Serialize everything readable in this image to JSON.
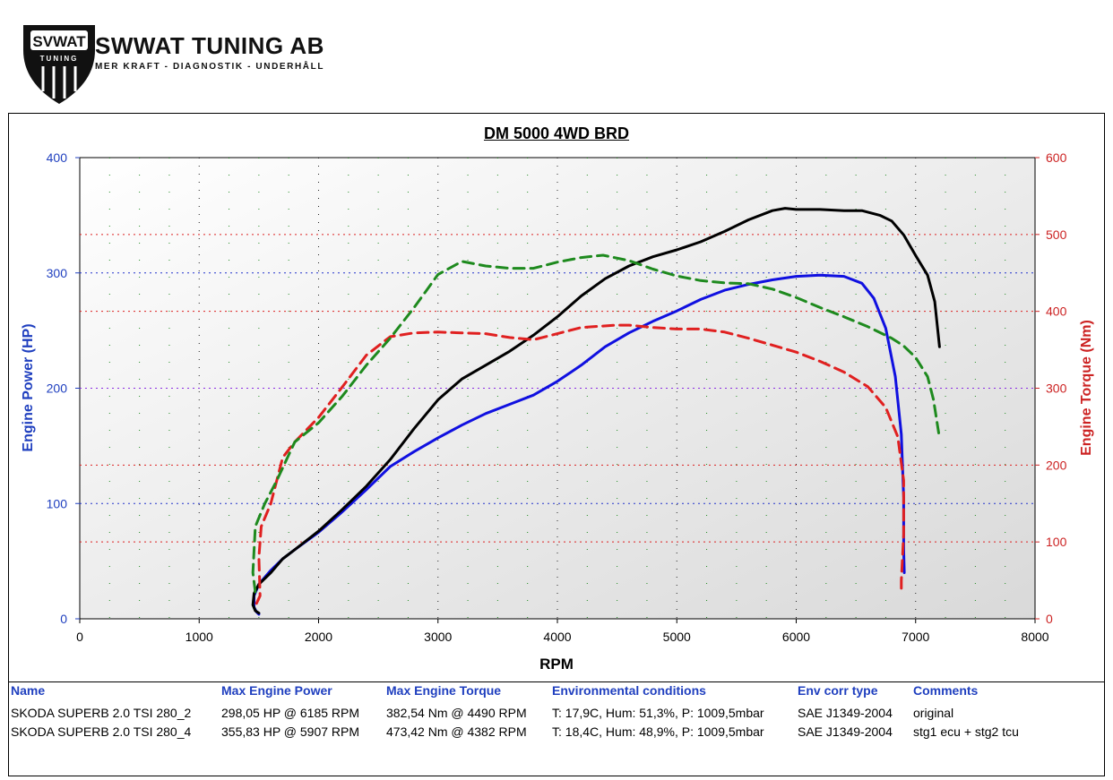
{
  "brand": {
    "logo_text": "SVWAT",
    "logo_subtext": "TUNING",
    "name": "SWWAT TUNING AB",
    "tagline": "MER KRAFT - DIAGNOSTIK - UNDERHÅLL"
  },
  "chart_data": {
    "type": "line",
    "title": "DM 5000 4WD BRD",
    "xlabel": "RPM",
    "ylabel_left": "Engine Power (HP)",
    "ylabel_right": "Engine Torque (Nm)",
    "xlim": [
      0,
      8000
    ],
    "ylim_left": [
      0,
      400
    ],
    "ylim_right": [
      0,
      600
    ],
    "x_ticks": [
      "0",
      "1000",
      "2000",
      "3000",
      "4000",
      "5000",
      "6000",
      "7000",
      "8000"
    ],
    "y_left_ticks": [
      "0",
      "100",
      "200",
      "300",
      "400"
    ],
    "y_right_ticks": [
      "0",
      "100",
      "200",
      "300",
      "400",
      "500",
      "600"
    ],
    "colors": {
      "power_original": "#1010e0",
      "power_stage": "#000000",
      "torque_original": "#e02020",
      "torque_stage": "#1e8a1e",
      "left_axis": "#1f3fbf",
      "right_axis": "#cc2222"
    },
    "series": [
      {
        "axis": "left",
        "style": "solid",
        "color": "#1010e0",
        "points": [
          [
            1500,
            4
          ],
          [
            1480,
            6
          ],
          [
            1460,
            10
          ],
          [
            1460,
            20
          ],
          [
            1500,
            30
          ],
          [
            1600,
            42
          ],
          [
            1700,
            52
          ],
          [
            1800,
            60
          ],
          [
            2000,
            75
          ],
          [
            2200,
            93
          ],
          [
            2400,
            112
          ],
          [
            2600,
            132
          ],
          [
            2800,
            145
          ],
          [
            3000,
            157
          ],
          [
            3200,
            168
          ],
          [
            3400,
            178
          ],
          [
            3600,
            186
          ],
          [
            3800,
            194
          ],
          [
            4000,
            206
          ],
          [
            4200,
            220
          ],
          [
            4400,
            236
          ],
          [
            4600,
            248
          ],
          [
            4800,
            258
          ],
          [
            5000,
            267
          ],
          [
            5200,
            277
          ],
          [
            5400,
            285
          ],
          [
            5600,
            290
          ],
          [
            5800,
            294
          ],
          [
            6000,
            297
          ],
          [
            6200,
            298
          ],
          [
            6400,
            297
          ],
          [
            6550,
            291
          ],
          [
            6650,
            278
          ],
          [
            6750,
            252
          ],
          [
            6830,
            210
          ],
          [
            6880,
            160
          ],
          [
            6900,
            105
          ],
          [
            6900,
            60
          ],
          [
            6905,
            40
          ]
        ]
      },
      {
        "axis": "left",
        "style": "solid",
        "color": "#000000",
        "points": [
          [
            1500,
            5
          ],
          [
            1470,
            7
          ],
          [
            1450,
            12
          ],
          [
            1460,
            22
          ],
          [
            1500,
            30
          ],
          [
            1600,
            40
          ],
          [
            1700,
            52
          ],
          [
            1800,
            60
          ],
          [
            2000,
            76
          ],
          [
            2200,
            95
          ],
          [
            2400,
            115
          ],
          [
            2600,
            138
          ],
          [
            2800,
            165
          ],
          [
            3000,
            190
          ],
          [
            3200,
            208
          ],
          [
            3400,
            220
          ],
          [
            3600,
            232
          ],
          [
            3800,
            246
          ],
          [
            4000,
            262
          ],
          [
            4200,
            280
          ],
          [
            4400,
            295
          ],
          [
            4600,
            306
          ],
          [
            4800,
            314
          ],
          [
            5000,
            320
          ],
          [
            5200,
            327
          ],
          [
            5400,
            336
          ],
          [
            5600,
            346
          ],
          [
            5800,
            354
          ],
          [
            5907,
            356
          ],
          [
            6000,
            355
          ],
          [
            6200,
            355
          ],
          [
            6400,
            354
          ],
          [
            6550,
            354
          ],
          [
            6700,
            350
          ],
          [
            6800,
            345
          ],
          [
            6900,
            333
          ],
          [
            7000,
            315
          ],
          [
            7100,
            298
          ],
          [
            7160,
            275
          ],
          [
            7200,
            236
          ]
        ]
      },
      {
        "axis": "right",
        "style": "dashed",
        "color": "#e02020",
        "points": [
          [
            1480,
            20
          ],
          [
            1510,
            30
          ],
          [
            1500,
            80
          ],
          [
            1520,
            120
          ],
          [
            1600,
            150
          ],
          [
            1700,
            210
          ],
          [
            1800,
            230
          ],
          [
            2000,
            262
          ],
          [
            2200,
            302
          ],
          [
            2400,
            343
          ],
          [
            2600,
            367
          ],
          [
            2800,
            372
          ],
          [
            3000,
            373
          ],
          [
            3200,
            372
          ],
          [
            3400,
            371
          ],
          [
            3600,
            366
          ],
          [
            3800,
            363
          ],
          [
            4000,
            371
          ],
          [
            4200,
            379
          ],
          [
            4490,
            382
          ],
          [
            4600,
            382
          ],
          [
            4800,
            379
          ],
          [
            5000,
            377
          ],
          [
            5200,
            377
          ],
          [
            5400,
            373
          ],
          [
            5600,
            365
          ],
          [
            5800,
            356
          ],
          [
            6000,
            347
          ],
          [
            6200,
            335
          ],
          [
            6400,
            321
          ],
          [
            6600,
            302
          ],
          [
            6750,
            275
          ],
          [
            6850,
            237
          ],
          [
            6900,
            180
          ],
          [
            6900,
            110
          ],
          [
            6880,
            50
          ],
          [
            6880,
            35
          ]
        ]
      },
      {
        "axis": "right",
        "style": "dashed",
        "color": "#1e8a1e",
        "points": [
          [
            1470,
            35
          ],
          [
            1450,
            60
          ],
          [
            1470,
            120
          ],
          [
            1550,
            150
          ],
          [
            1650,
            180
          ],
          [
            1800,
            230
          ],
          [
            2000,
            255
          ],
          [
            2200,
            290
          ],
          [
            2400,
            330
          ],
          [
            2600,
            365
          ],
          [
            2800,
            405
          ],
          [
            3000,
            448
          ],
          [
            3200,
            465
          ],
          [
            3400,
            459
          ],
          [
            3600,
            456
          ],
          [
            3800,
            456
          ],
          [
            4000,
            464
          ],
          [
            4200,
            470
          ],
          [
            4382,
            473
          ],
          [
            4600,
            466
          ],
          [
            4800,
            455
          ],
          [
            5000,
            446
          ],
          [
            5200,
            440
          ],
          [
            5400,
            437
          ],
          [
            5600,
            436
          ],
          [
            5800,
            429
          ],
          [
            6000,
            418
          ],
          [
            6200,
            405
          ],
          [
            6400,
            393
          ],
          [
            6600,
            380
          ],
          [
            6800,
            365
          ],
          [
            6900,
            355
          ],
          [
            7000,
            340
          ],
          [
            7100,
            315
          ],
          [
            7150,
            285
          ],
          [
            7200,
            235
          ]
        ]
      }
    ]
  },
  "table": {
    "headers": [
      "Name",
      "Max Engine Power",
      "Max Engine Torque",
      "Environmental conditions",
      "Env corr type",
      "Comments"
    ],
    "rows": [
      [
        "SKODA SUPERB 2.0 TSI 280_2",
        "298,05 HP @ 6185 RPM",
        "382,54 Nm @ 4490 RPM",
        "T: 17,9C, Hum: 51,3%, P: 1009,5mbar",
        "SAE J1349-2004",
        "original"
      ],
      [
        "SKODA SUPERB 2.0 TSI 280_4",
        "355,83 HP @ 5907 RPM",
        "473,42 Nm @ 4382 RPM",
        "T: 18,4C, Hum: 48,9%, P: 1009,5mbar",
        "SAE J1349-2004",
        "stg1 ecu + stg2 tcu"
      ]
    ]
  }
}
